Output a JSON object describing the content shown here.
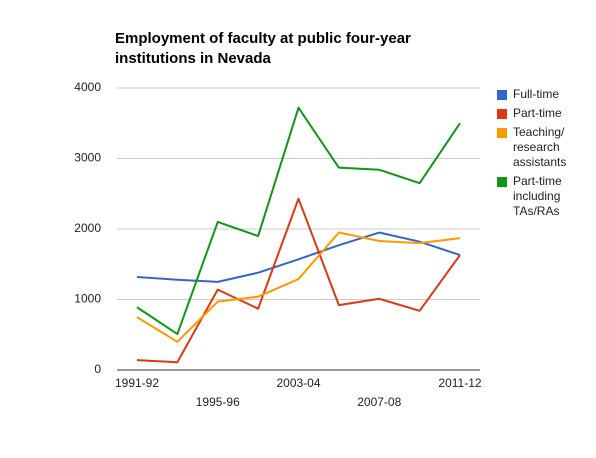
{
  "chart_data": {
    "type": "line",
    "title": "Employment of faculty at public four-year institutions in Nevada",
    "categories": [
      "1991-92",
      null,
      "1995-96",
      null,
      "2003-04",
      null,
      "2007-08",
      null,
      "2011-12"
    ],
    "series": [
      {
        "name": "Full-time",
        "color": "#3366cc",
        "values": [
          1320,
          1280,
          1250,
          1380,
          1570,
          1770,
          1950,
          1820,
          1630
        ]
      },
      {
        "name": "Part-time",
        "color": "#dc3912",
        "values": [
          140,
          110,
          1140,
          870,
          2430,
          920,
          1010,
          840,
          1630
        ]
      },
      {
        "name": "Teaching/ research assistants",
        "color": "#ff9900",
        "values": [
          750,
          400,
          970,
          1040,
          1290,
          1950,
          1830,
          1800,
          1870
        ]
      },
      {
        "name": "Part-time including TAs/RAs",
        "color": "#109618",
        "values": [
          890,
          510,
          2100,
          1900,
          3720,
          2870,
          2840,
          2650,
          3500
        ]
      }
    ],
    "ylim": [
      0,
      4000
    ],
    "yticks": [
      0,
      1000,
      2000,
      3000,
      4000
    ],
    "grid": true,
    "legend": "right"
  }
}
